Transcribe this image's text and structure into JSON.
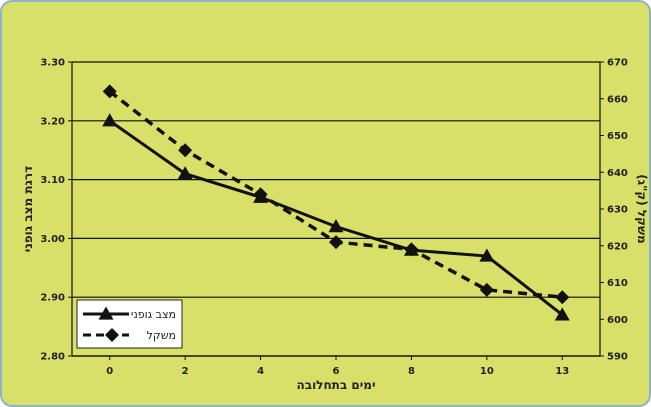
{
  "chart_data": {
    "type": "line",
    "x": [
      "0",
      "2",
      "4",
      "6",
      "8",
      "10",
      "13"
    ],
    "series": [
      {
        "name": "מצב גופני",
        "axis": "left",
        "style": "solid",
        "marker": "triangle",
        "values": [
          3.2,
          3.11,
          3.07,
          3.02,
          2.98,
          2.97,
          2.87
        ]
      },
      {
        "name": "משקל",
        "axis": "right",
        "style": "dashed",
        "marker": "diamond",
        "values": [
          662,
          646,
          634,
          621,
          619,
          608,
          606
        ]
      }
    ],
    "xlabel": "ימים בתחלובה",
    "ylabel_left": "דרגת מצב גופני",
    "ylabel_right": "משקל (ק\"ג)",
    "ylim_left": [
      2.8,
      3.3
    ],
    "yticks_left": [
      "2.80",
      "2.90",
      "3.00",
      "3.10",
      "3.20",
      "3.30"
    ],
    "ylim_right": [
      590,
      670
    ],
    "yticks_right": [
      "590",
      "600",
      "610",
      "620",
      "630",
      "640",
      "650",
      "660",
      "670"
    ],
    "grid": true,
    "legend_position": "bottom-left",
    "colors": {
      "background": "#d9e06a",
      "line": "#111111",
      "grid": "#111111",
      "legend_bg": "#ffffff",
      "frame_border": "#8fb3c6"
    }
  }
}
